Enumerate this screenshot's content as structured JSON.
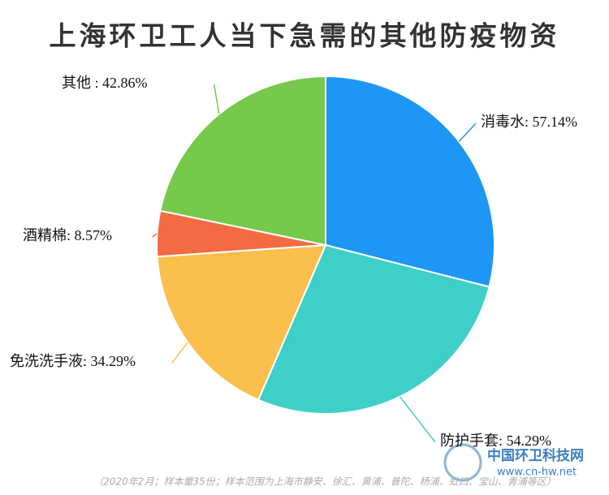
{
  "chart_data": {
    "type": "pie",
    "title": "上海环卫工人当下急需的其他防疫物资",
    "values": [
      57.14,
      54.29,
      34.29,
      8.57,
      42.86
    ],
    "value_labels": [
      "消毒水: 57.14%",
      "防护手套: 54.29%",
      "免洗洗手液: 34.29%",
      "酒精棉: 8.57%",
      "其他 : 42.86%"
    ],
    "colors": [
      "#1e96f5",
      "#3ecfc8",
      "#fbbf4e",
      "#f46b43",
      "#76c94a"
    ],
    "note": "（2020年2月；样本量35份；样本范围为上海市静安、徐汇、黄浦、普陀、杨浦、虹口、宝山、青浦等区）",
    "watermark": [
      "中国环卫科技网",
      "www.cn-hw.net"
    ]
  }
}
